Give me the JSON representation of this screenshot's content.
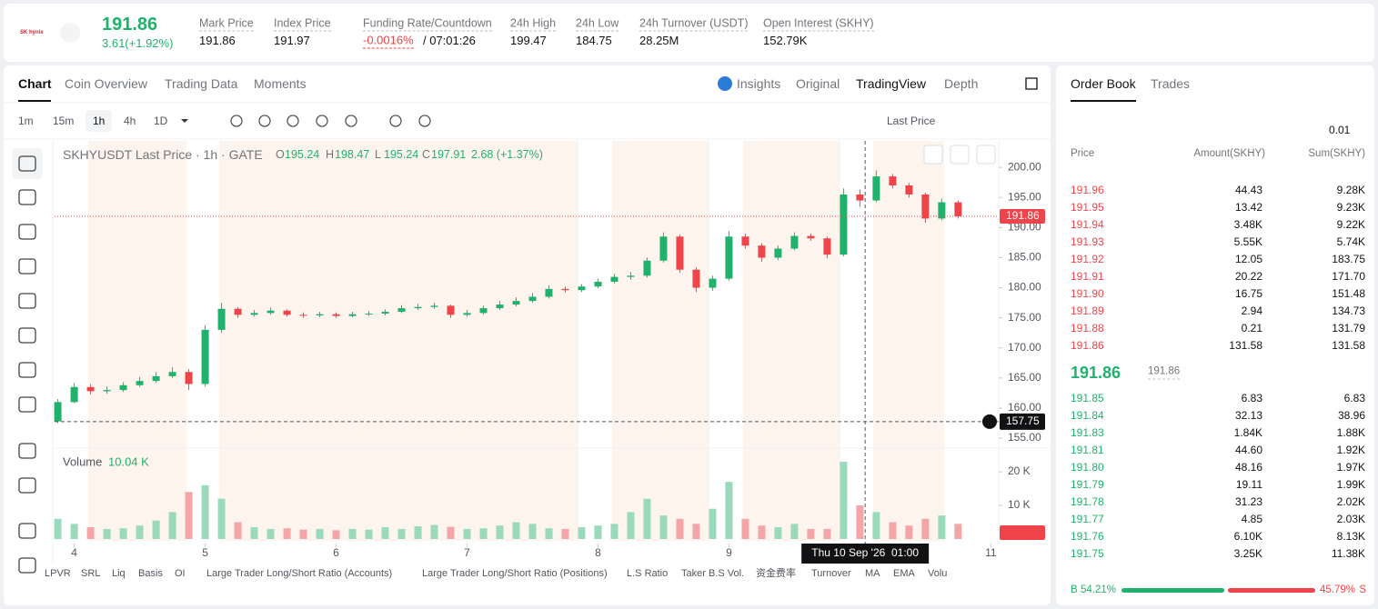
{
  "header": {
    "logo": "SK hynix",
    "last_price": "191.86",
    "change": "3.61(+1.92%)",
    "stats": [
      {
        "label": "Mark Price",
        "value": "191.86"
      },
      {
        "label": "Index Price",
        "value": "191.97"
      },
      {
        "label": "Funding Rate/Countdown",
        "value": "-0.0016%",
        "extra": "/ 07:01:26"
      },
      {
        "label": "24h High",
        "value": "199.47"
      },
      {
        "label": "24h Low",
        "value": "184.75"
      },
      {
        "label": "24h Turnover (USDT)",
        "value": "28.25M"
      },
      {
        "label": "Open Interest (SKHY)",
        "value": "152.79K"
      }
    ]
  },
  "chart_panel": {
    "tabs": [
      "Chart",
      "Coin Overview",
      "Trading Data",
      "Moments"
    ],
    "views": [
      "Insights",
      "Original",
      "TradingView",
      "Depth"
    ],
    "intervals": [
      "1m",
      "15m",
      "1h",
      "4h",
      "1D"
    ],
    "price_type": "Last Price",
    "legend": {
      "title": "SKHYUSDT Last Price · 1h · GATE",
      "ohlc": [
        {
          "label": "O",
          "value": "195.24"
        },
        {
          "label": "H",
          "value": "198.47"
        },
        {
          "label": "L",
          "value": "195.24"
        },
        {
          "label": "C",
          "value": "197.91"
        }
      ],
      "change": "2.68 (+1.37%)"
    },
    "indicators": [
      "LPVR",
      "SRL",
      "Liq",
      "Basis",
      "OI",
      "Large Trader Long/Short Ratio (Accounts)",
      "Large Trader Long/Short Ratio (Positions)",
      "L.S Ratio",
      "Taker B.S Vol.",
      "资金费率",
      "Turnover",
      "MA",
      "EMA",
      "Volu"
    ]
  },
  "chart_data": [
    {
      "type": "candlestick",
      "up_color": "#20b26c",
      "down_color": "#ef454a",
      "x": [
        3.875,
        4.0,
        4.125,
        4.25,
        4.375,
        4.5,
        4.625,
        4.75,
        4.875,
        5.0,
        5.125,
        5.25,
        5.375,
        5.5,
        5.625,
        5.75,
        5.875,
        6.0,
        6.125,
        6.25,
        6.375,
        6.5,
        6.625,
        6.75,
        6.875,
        7.0,
        7.125,
        7.25,
        7.375,
        7.5,
        7.625,
        7.75,
        7.875,
        8.0,
        8.125,
        8.25,
        8.375,
        8.5,
        8.625,
        8.75,
        8.875,
        9.0,
        9.125,
        9.25,
        9.375,
        9.5,
        9.625,
        9.75,
        9.875,
        10.0,
        10.125,
        10.25,
        10.375,
        10.5,
        10.625,
        10.75
      ],
      "open": [
        157.8,
        161,
        163.5,
        162.8,
        163,
        163.8,
        164.5,
        165.3,
        166,
        164,
        173,
        176.5,
        175.5,
        175.8,
        176.2,
        175.5,
        175.4,
        175.6,
        175.3,
        175.6,
        175.7,
        176,
        176.6,
        176.8,
        177,
        175.5,
        175.8,
        176.6,
        177.2,
        177.8,
        178.5,
        179.8,
        179.6,
        180.2,
        181,
        181.8,
        182,
        184.5,
        188.5,
        183,
        180,
        181.5,
        188.5,
        187,
        185,
        186.5,
        188.6,
        188.2,
        185.5,
        195.5,
        194.5,
        198.5,
        197,
        195.5,
        191.5,
        194.2
      ],
      "high": [
        161.5,
        164.2,
        164,
        163.6,
        164.3,
        165.2,
        166,
        166.8,
        166.5,
        173.8,
        177.5,
        176.8,
        176.3,
        176.7,
        176.4,
        175.9,
        176,
        175.9,
        176,
        176.1,
        176.4,
        177.1,
        177.3,
        177.5,
        177.2,
        176.3,
        177,
        177.8,
        178.4,
        179.1,
        180.4,
        180.2,
        180.6,
        181.5,
        182.3,
        182.6,
        185,
        189.2,
        188.8,
        183.4,
        182,
        189.4,
        189,
        187.4,
        187,
        189.2,
        189,
        188.5,
        196.5,
        196.3,
        199.5,
        198.9,
        197.4,
        195.8,
        194.8,
        194.5
      ],
      "low": [
        157.5,
        160.8,
        162.3,
        162.4,
        162.7,
        163.5,
        164.2,
        165,
        163,
        163.6,
        172.5,
        175,
        175.2,
        175.5,
        175.2,
        175,
        175.1,
        175,
        175.1,
        175.3,
        175.4,
        175.8,
        176.3,
        176.5,
        175,
        175.2,
        175.5,
        176.3,
        176.9,
        177.5,
        178.2,
        179.2,
        179.3,
        179.9,
        180.7,
        181.3,
        181.7,
        184.2,
        182.5,
        179.3,
        179.5,
        181.2,
        186.5,
        184.3,
        184.6,
        186.2,
        187.8,
        184.9,
        185.2,
        193.5,
        194.2,
        196.5,
        195,
        190.8,
        191.2,
        191.5
      ],
      "close": [
        161,
        163.5,
        162.8,
        163,
        163.8,
        164.5,
        165.3,
        166,
        164,
        173,
        176.5,
        175.5,
        175.8,
        176.2,
        175.5,
        175.4,
        175.6,
        175.3,
        175.6,
        175.7,
        176,
        176.6,
        176.8,
        177,
        175.5,
        175.8,
        176.6,
        177.2,
        177.8,
        178.5,
        179.8,
        179.6,
        180.2,
        181,
        181.8,
        182,
        184.5,
        188.5,
        183,
        180,
        181.5,
        188.5,
        187,
        185,
        186.5,
        188.6,
        188.2,
        185.5,
        195.5,
        194.5,
        198.5,
        197,
        195.5,
        191.5,
        194.2,
        191.86
      ],
      "xlim": [
        3.85,
        11.06
      ],
      "xticks": [
        4,
        5,
        6,
        7,
        8,
        9,
        10,
        11
      ],
      "ylim": [
        153.5,
        204.4
      ],
      "yticks": [
        {
          "value": 155,
          "label": "155.00"
        },
        {
          "value": 160,
          "label": "160.00"
        },
        {
          "value": 165,
          "label": "165.00"
        },
        {
          "value": 170,
          "label": "170.00"
        },
        {
          "value": 175,
          "label": "175.00"
        },
        {
          "value": 180,
          "label": "180.00"
        },
        {
          "value": 185,
          "label": "185.00"
        },
        {
          "value": 190,
          "label": "190.00"
        },
        {
          "value": 195,
          "label": "195.00"
        },
        {
          "value": 200,
          "label": "200.00"
        }
      ],
      "last_price": 191.86,
      "crosshair": {
        "price": 157.75,
        "x": 10.04,
        "time_label": "Thu 10 Sep '26  01:00"
      }
    },
    {
      "type": "bar",
      "title": "Volume",
      "value_label": "10.04 K",
      "up_color": "#9ad9bb",
      "down_color": "#f4a5a8",
      "x": [
        3.875,
        4.0,
        4.125,
        4.25,
        4.375,
        4.5,
        4.625,
        4.75,
        4.875,
        5.0,
        5.125,
        5.25,
        5.375,
        5.5,
        5.625,
        5.75,
        5.875,
        6.0,
        6.125,
        6.25,
        6.375,
        6.5,
        6.625,
        6.75,
        6.875,
        7.0,
        7.125,
        7.25,
        7.375,
        7.5,
        7.625,
        7.75,
        7.875,
        8.0,
        8.125,
        8.25,
        8.375,
        8.5,
        8.625,
        8.75,
        8.875,
        9.0,
        9.125,
        9.25,
        9.375,
        9.5,
        9.625,
        9.75,
        9.875,
        10.0,
        10.125,
        10.25,
        10.375,
        10.5,
        10.625,
        10.75
      ],
      "values": [
        6000,
        4500,
        3500,
        3000,
        3200,
        4000,
        5500,
        8000,
        14000,
        16000,
        12000,
        5000,
        3500,
        3000,
        3200,
        2800,
        3000,
        2600,
        3000,
        2800,
        3500,
        3000,
        3800,
        4200,
        3600,
        3000,
        3200,
        4000,
        5000,
        4500,
        3200,
        3000,
        3500,
        4000,
        4500,
        8000,
        12000,
        7000,
        6000,
        4500,
        9000,
        17000,
        6000,
        4000,
        3500,
        4500,
        3000,
        3000,
        23000,
        10000,
        8000,
        5000,
        4000,
        6000,
        7000,
        4500
      ],
      "ylim": [
        0,
        26500
      ],
      "yticks": [
        {
          "value": 10000,
          "label": "10 K"
        },
        {
          "value": 20000,
          "label": "20 K"
        }
      ]
    }
  ],
  "order_book": {
    "tabs": [
      "Order Book",
      "Trades"
    ],
    "tick": "0.01",
    "columns": [
      "Price",
      "Amount(SKHY)",
      "Sum(SKHY)"
    ],
    "asks": [
      [
        "191.96",
        "44.43",
        "9.28K"
      ],
      [
        "191.95",
        "13.42",
        "9.23K"
      ],
      [
        "191.94",
        "3.48K",
        "9.22K"
      ],
      [
        "191.93",
        "5.55K",
        "5.74K"
      ],
      [
        "191.92",
        "12.05",
        "183.75"
      ],
      [
        "191.91",
        "20.22",
        "171.70"
      ],
      [
        "191.90",
        "16.75",
        "151.48"
      ],
      [
        "191.89",
        "2.94",
        "134.73"
      ],
      [
        "191.88",
        "0.21",
        "131.79"
      ],
      [
        "191.86",
        "131.58",
        "131.58"
      ]
    ],
    "mid_price": "191.86",
    "mark_price": "191.86",
    "bids": [
      [
        "191.85",
        "6.83",
        "6.83"
      ],
      [
        "191.84",
        "32.13",
        "38.96"
      ],
      [
        "191.83",
        "1.84K",
        "1.88K"
      ],
      [
        "191.81",
        "44.60",
        "1.92K"
      ],
      [
        "191.80",
        "48.16",
        "1.97K"
      ],
      [
        "191.79",
        "19.11",
        "1.99K"
      ],
      [
        "191.78",
        "31.23",
        "2.02K"
      ],
      [
        "191.77",
        "4.85",
        "2.03K"
      ],
      [
        "191.76",
        "6.10K",
        "8.13K"
      ],
      [
        "191.75",
        "3.25K",
        "11.38K"
      ]
    ],
    "buy_label": "B",
    "buy": {
      "value": 54.21,
      "label": "54.21%"
    },
    "sell_label": "S",
    "sell": {
      "value": 45.79,
      "label": "45.79%"
    }
  }
}
